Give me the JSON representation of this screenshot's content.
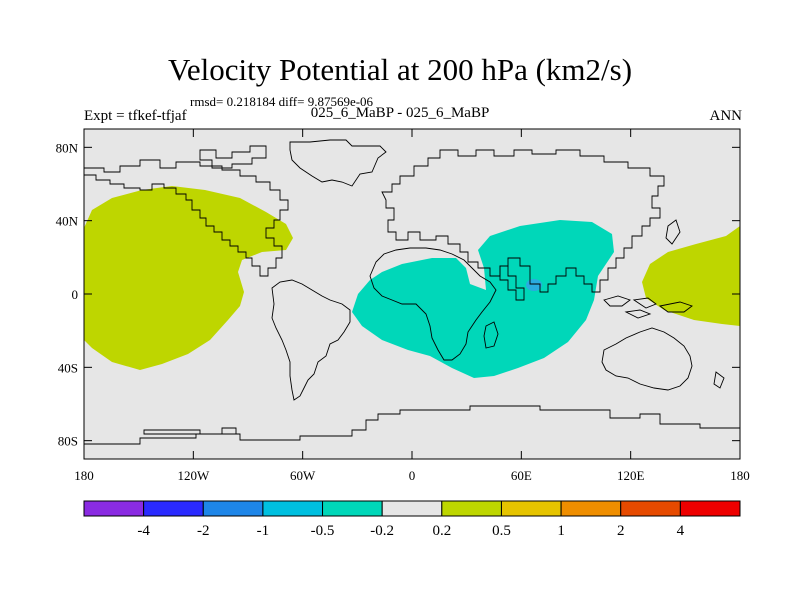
{
  "title": "Velocity Potential at 200 hPa (km2/s)",
  "stats": "rmsd= 0.218184 diff= 9.87569e-06",
  "experiment": "Expt = tfkef-tfjaf",
  "cases": "025_6_MaBP - 025_6_MaBP",
  "season": "ANN",
  "colors": {
    "background_field": "#e6e6e6",
    "positive_field": "#bed600",
    "negative_field": "#00d7b9",
    "local_minimum": "#2aabdf",
    "coastline": "#000000"
  },
  "map": {
    "lon_range": [
      -180,
      180
    ],
    "lat_range": [
      -90,
      90
    ],
    "lon_ticks": [
      {
        "value": -180,
        "label": "180"
      },
      {
        "value": -120,
        "label": "120W"
      },
      {
        "value": -60,
        "label": "60W"
      },
      {
        "value": 0,
        "label": "0"
      },
      {
        "value": 60,
        "label": "60E"
      },
      {
        "value": 120,
        "label": "120E"
      },
      {
        "value": 180,
        "label": "180"
      }
    ],
    "lat_ticks": [
      {
        "value": 80,
        "label": "80N"
      },
      {
        "value": 40,
        "label": "40N"
      },
      {
        "value": 0,
        "label": "0"
      },
      {
        "value": -40,
        "label": "40S"
      },
      {
        "value": -80,
        "label": "80S"
      }
    ]
  },
  "colorbar": {
    "colors": [
      "#8a2be2",
      "#2a2aff",
      "#1e86e8",
      "#00c0e0",
      "#00d7b9",
      "#e6e6e6",
      "#bed600",
      "#e6c400",
      "#ef8e00",
      "#e64a00",
      "#ee0000"
    ],
    "labels": [
      "-4",
      "-2",
      "-1",
      "-0.5",
      "-0.2",
      "0.2",
      "0.5",
      "1",
      "2",
      "4"
    ]
  }
}
